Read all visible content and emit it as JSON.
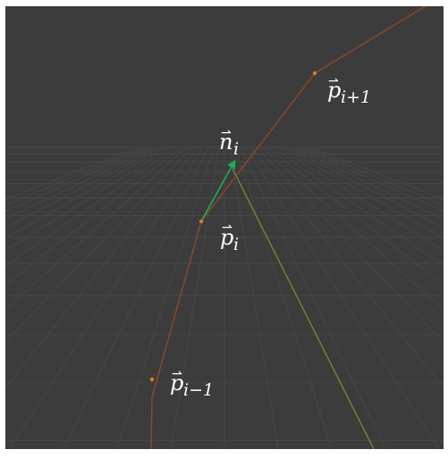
{
  "colors": {
    "background": "#3c3c3c",
    "grid": "#4a4a4a",
    "polyline": "#8a4a2a",
    "vertex": "#e07a20",
    "normal": "#1faa5a",
    "axis_line": "#7a8a3a",
    "label": "#ffffff"
  },
  "labels": {
    "p_next": {
      "base": "p",
      "subscript": "i+1"
    },
    "n_i": {
      "base": "n",
      "subscript": "i"
    },
    "p_i": {
      "base": "p",
      "subscript": "i"
    },
    "p_prev": {
      "base": "p",
      "subscript": "i−1"
    }
  }
}
